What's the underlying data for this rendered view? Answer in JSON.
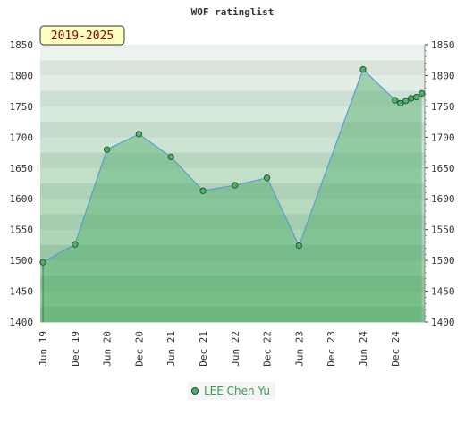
{
  "chart_data": {
    "type": "area",
    "title": "WOF ratinglist",
    "badge": "2019-2025",
    "ylim": [
      1400,
      1850
    ],
    "yticks": [
      1400,
      1450,
      1500,
      1550,
      1600,
      1650,
      1700,
      1750,
      1800,
      1850
    ],
    "xticks": [
      "Jun 19",
      "Dec 19",
      "Jun 20",
      "Dec 20",
      "Jun 21",
      "Dec 21",
      "Jun 22",
      "Dec 22",
      "Jun 23",
      "Dec 23",
      "Jun 24",
      "Dec 24"
    ],
    "series": [
      {
        "name": "LEE Chen Yu",
        "points": [
          {
            "x": "2019-06",
            "y": 1497
          },
          {
            "x": "2019-12",
            "y": 1526
          },
          {
            "x": "2020-06",
            "y": 1680
          },
          {
            "x": "2020-12",
            "y": 1705
          },
          {
            "x": "2021-06",
            "y": 1668
          },
          {
            "x": "2021-12",
            "y": 1613
          },
          {
            "x": "2022-06",
            "y": 1622
          },
          {
            "x": "2022-12",
            "y": 1634
          },
          {
            "x": "2023-06",
            "y": 1524
          },
          {
            "x": "2024-06",
            "y": 1810
          },
          {
            "x": "2024-12",
            "y": 1760
          },
          {
            "x": "2025-01",
            "y": 1755
          },
          {
            "x": "2025-02",
            "y": 1759
          },
          {
            "x": "2025-03",
            "y": 1763
          },
          {
            "x": "2025-04",
            "y": 1765
          },
          {
            "x": "2025-05",
            "y": 1771
          }
        ]
      }
    ],
    "legend_position": "bottom-center",
    "grid": "horizontal bands"
  },
  "colors": {
    "line": "#5b9bd5",
    "marker": "#4caf6a",
    "marker_border": "#1f4f2c",
    "fill": "#4fae6a",
    "badge_bg": "#ffffc0",
    "badge_text": "#8b0000"
  }
}
